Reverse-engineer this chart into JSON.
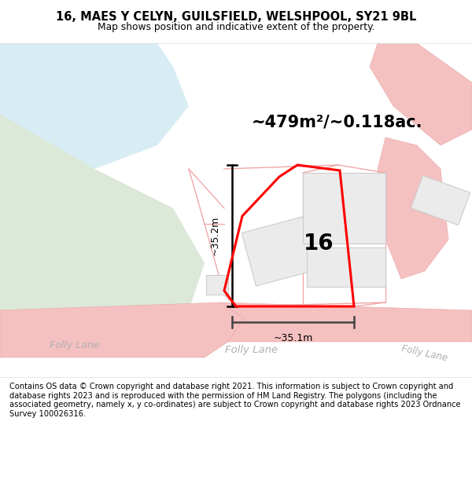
{
  "title": "16, MAES Y CELYN, GUILSFIELD, WELSHPOOL, SY21 9BL",
  "subtitle": "Map shows position and indicative extent of the property.",
  "area_label": "~479m²/~0.118ac.",
  "width_label": "~35.1m",
  "height_label": "~35.2m",
  "number_label": "16",
  "footer": "Contains OS data © Crown copyright and database right 2021. This information is subject to Crown copyright and database rights 2023 and is reproduced with the permission of HM Land Registry. The polygons (including the associated geometry, namely x, y co-ordinates) are subject to Crown copyright and database rights 2023 Ordnance Survey 100026316.",
  "map_bg": "#ffffff",
  "road_color": "#f5c0c0",
  "road_edge": "#e8a8a8",
  "green_color": "#dce8d8",
  "blue_color": "#d8ecf4",
  "building_fill": "#ebebeb",
  "building_edge": "#cccccc",
  "pink_line": "#f0a8a8",
  "meas_color": "#444444"
}
